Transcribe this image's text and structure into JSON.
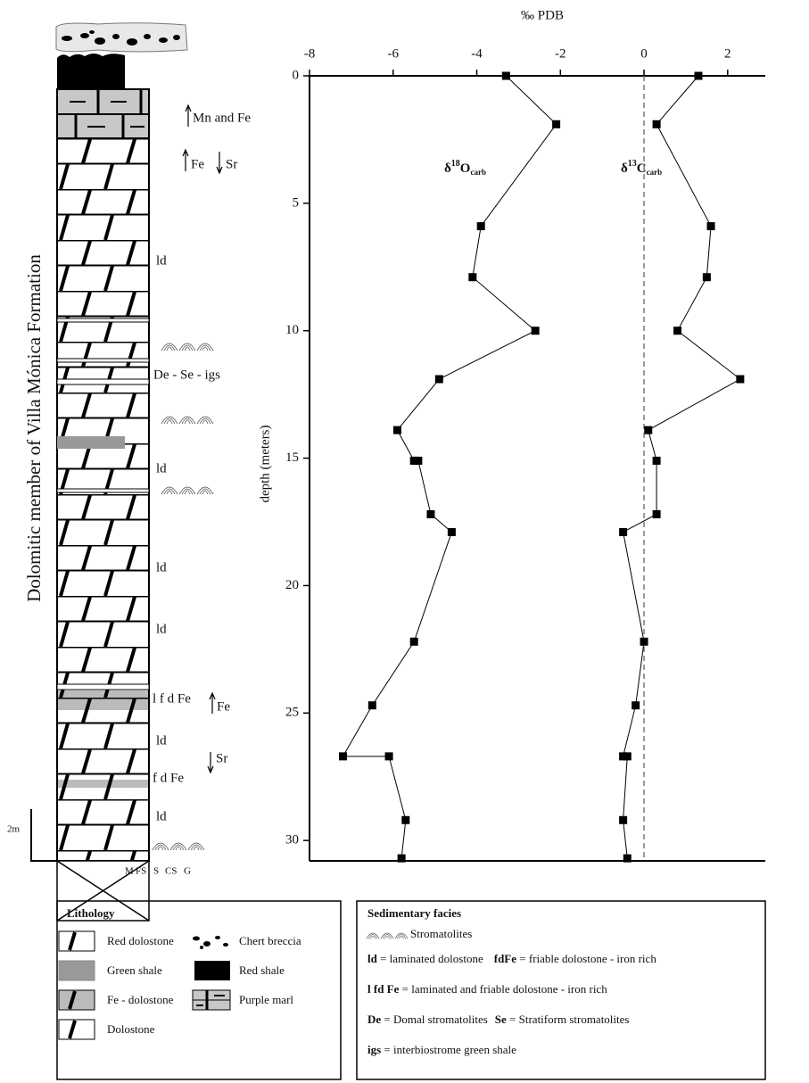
{
  "chart_data": {
    "type": "line",
    "x_label": "‰ PDB",
    "y_label": "depth (meters)",
    "xlim": [
      -8,
      2.9
    ],
    "xticks": [
      -8,
      -6,
      -4,
      -2,
      0,
      2
    ],
    "ylim": [
      0,
      30.8
    ],
    "yticks": [
      0,
      5,
      10,
      15,
      20,
      25,
      30
    ],
    "y_inverted": true,
    "ref_line": 0,
    "color": "#000000",
    "series": [
      {
        "name_parts": [
          "δ",
          "18",
          "O",
          "carb"
        ],
        "values": [
          -3.3,
          -2.1,
          -3.9,
          -4.1,
          -2.6,
          -4.9,
          -5.9,
          -5.5,
          -5.4,
          -5.1,
          -4.6,
          -5.5,
          -6.5,
          -7.2,
          -6.1,
          -5.7,
          -5.8
        ],
        "depths": [
          0,
          1.9,
          5.9,
          7.9,
          10,
          11.9,
          13.9,
          15.1,
          15.1,
          17.2,
          17.9,
          22.2,
          24.7,
          26.7,
          26.7,
          29.2,
          30.7
        ]
      },
      {
        "name_parts": [
          "δ",
          "13",
          "C",
          "carb"
        ],
        "values": [
          1.3,
          0.3,
          1.6,
          1.5,
          0.8,
          2.3,
          0.1,
          0.3,
          0.3,
          -0.5,
          0,
          -0.2,
          -0.5,
          -0.4,
          -0.5,
          -0.4
        ],
        "depths": [
          0,
          1.9,
          5.9,
          7.9,
          10,
          11.9,
          13.9,
          15.1,
          17.2,
          17.9,
          22.2,
          24.7,
          26.7,
          26.7,
          29.2,
          30.7
        ]
      }
    ]
  },
  "column": {
    "title": "Dolomitic member of Villa Mónica Formation",
    "notes": [
      "Mn and Fe",
      "Fe",
      "Sr",
      "ld",
      "De - Se - igs",
      "ld",
      "ld",
      "ld",
      "l f d Fe",
      "Fe",
      "ld",
      "Sr",
      "f d Fe",
      "ld"
    ],
    "scale": "2m",
    "grain_sizes": [
      "M",
      "FS",
      "S",
      "CS",
      "G"
    ]
  },
  "lithology": {
    "title": "Lithology",
    "items": [
      "Red dolostone",
      "Green shale",
      "Fe - dolostone",
      "Dolostone",
      "Chert breccia",
      "Red shale",
      "Purple marl"
    ]
  },
  "facies": {
    "title": "Sedimentary facies",
    "stromatolites": "Stromatolites",
    "rows": [
      [
        {
          "term": "ld",
          "def": "= laminated dolostone"
        },
        {
          "term": "fdFe",
          "def": "= friable dolostone - iron rich"
        }
      ],
      [
        {
          "term": "l fd Fe",
          "def": "= laminated and friable dolostone - iron rich"
        }
      ],
      [
        {
          "term": "De",
          "def": "= Domal stromatolites"
        },
        {
          "term": "Se",
          "def": "= Stratiform stromatolites"
        }
      ],
      [
        {
          "term": "igs",
          "def": "= interbiostrome green shale"
        }
      ]
    ]
  }
}
